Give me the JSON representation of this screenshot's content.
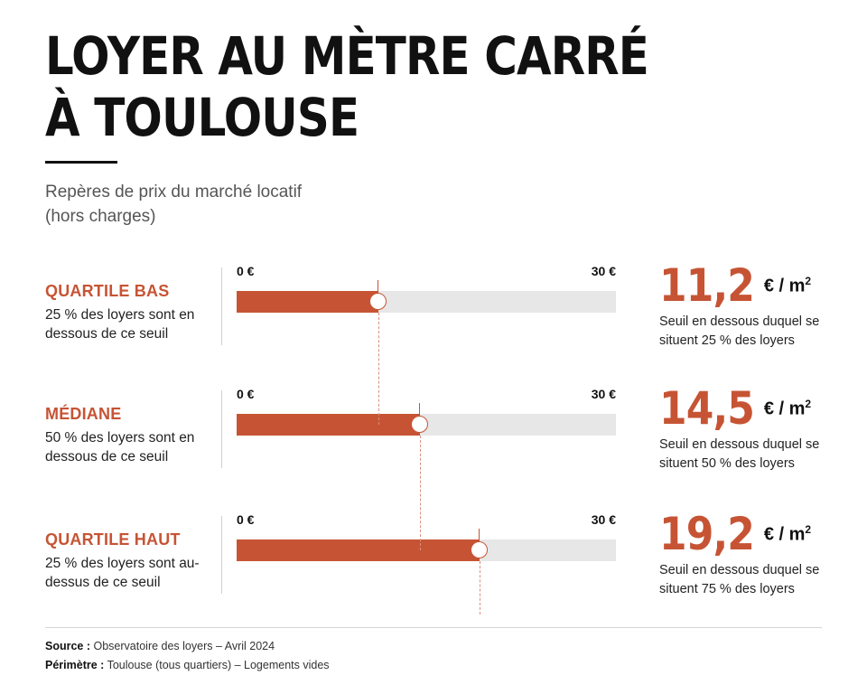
{
  "header": {
    "title_line1": "LOYER AU MÈTRE CARRÉ",
    "title_line2": "À TOULOUSE",
    "subtitle_line1": "Repères de prix du marché locatif",
    "subtitle_line2": "(hors charges)"
  },
  "chart_data": {
    "type": "bar",
    "unit": "€ / m²",
    "axis_min_label": "0 €",
    "axis_max_label": "30 €",
    "xlim": [
      0,
      30
    ],
    "colors": {
      "fill": "#c65434",
      "track": "#e7e7e7"
    },
    "rows": [
      {
        "label": "QUARTILE BAS",
        "description": "25 % des loyers sont en dessous de ce seuil",
        "value": 11.2,
        "value_text": "11,2",
        "note": "Seuil en dessous duquel se situent 25 % des loyers"
      },
      {
        "label": "MÉDIANE",
        "description": "50 % des loyers sont en dessous de ce seuil",
        "value": 14.5,
        "value_text": "14,5",
        "note": "Seuil en dessous duquel se situent 50 % des loyers"
      },
      {
        "label": "QUARTILE HAUT",
        "description": "25 % des loyers sont au-dessus de ce seuil",
        "value": 19.2,
        "value_text": "19,2",
        "note": "Seuil en dessous duquel se situent 75 % des loyers"
      }
    ]
  },
  "footer": {
    "source_label": "Source :",
    "source_text": "Observatoire des loyers – Avril 2024",
    "scope_label": "Périmètre :",
    "scope_text": "Toulouse (tous quartiers) – Logements vides"
  }
}
